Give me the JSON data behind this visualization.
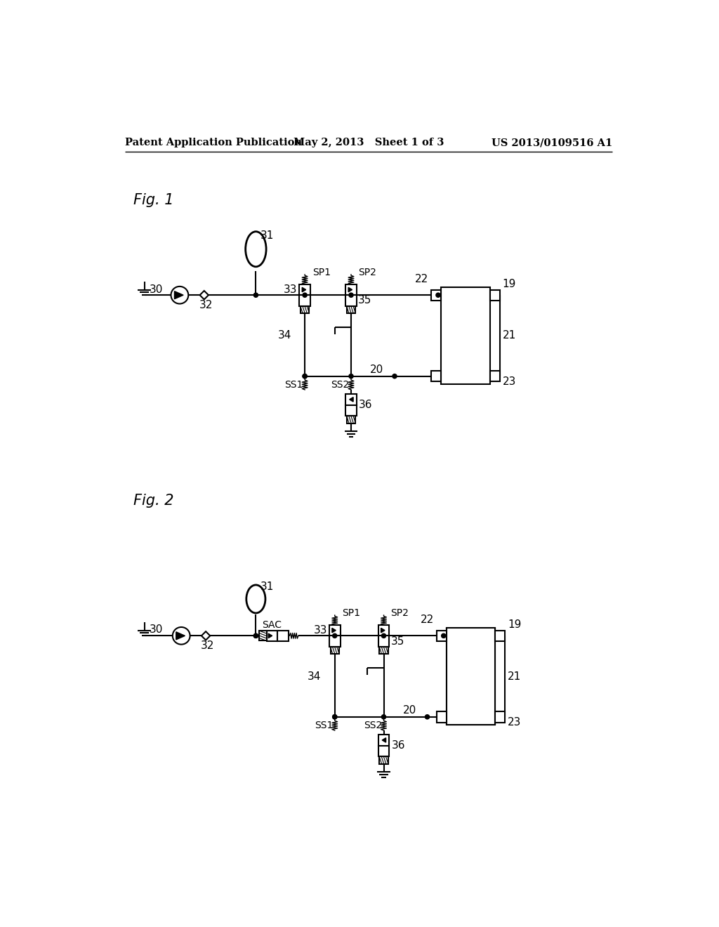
{
  "bg": "#ffffff",
  "lc": "#000000",
  "header_left": "Patent Application Publication",
  "header_center": "May 2, 2013   Sheet 1 of 3",
  "header_right": "US 2013/0109516 A1",
  "fig1_label": "Fig. 1",
  "fig2_label": "Fig. 2",
  "lw": 1.5,
  "tlw": 2.0
}
